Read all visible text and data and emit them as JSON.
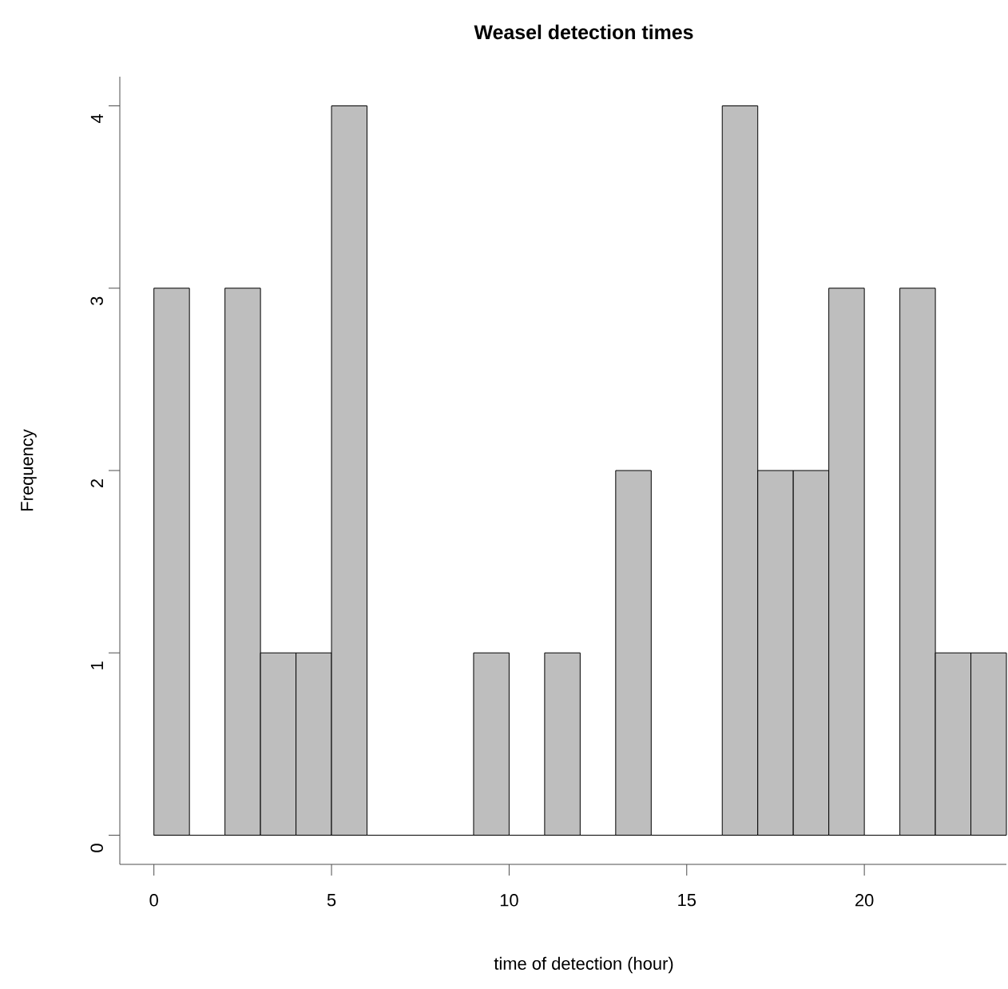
{
  "chart_data": {
    "type": "histogram",
    "title": "Weasel detection times",
    "xlabel": "time of detection (hour)",
    "ylabel": "Frequency",
    "bins": [
      0,
      1,
      2,
      3,
      4,
      5,
      6,
      7,
      8,
      9,
      10,
      11,
      12,
      13,
      14,
      15,
      16,
      17,
      18,
      19,
      20,
      21,
      22,
      23,
      24
    ],
    "values": [
      3,
      0,
      3,
      1,
      1,
      4,
      0,
      0,
      0,
      1,
      0,
      1,
      0,
      2,
      0,
      0,
      4,
      2,
      2,
      3,
      0,
      3,
      1,
      1
    ],
    "color": "#bebebe",
    "ref_lines": [
      {
        "axis": "y",
        "value": 0,
        "color": "#000000"
      }
    ],
    "xlim": [
      -0.96,
      24
    ],
    "ylim": [
      -0.16,
      4.16
    ],
    "xticks": [
      0,
      5,
      10,
      15,
      20
    ],
    "yticks": [
      0,
      1,
      2,
      3,
      4
    ]
  }
}
